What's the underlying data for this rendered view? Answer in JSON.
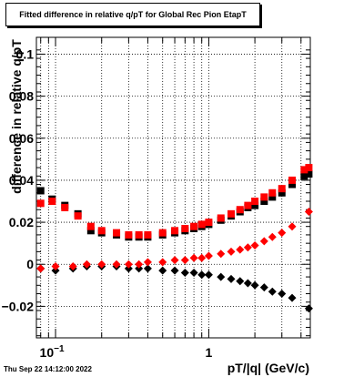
{
  "title": "Fitted difference in relative q/pT for Global Rec Pion EtapT",
  "footer": "Thu Sep 22 14:12:00 2022",
  "chart_data": {
    "type": "scatter",
    "title": "Fitted difference in relative q/pT for Global Rec Pion EtapT",
    "xlabel": "pT/|q| (GeV/c)",
    "ylabel": "difference in relative q/pT",
    "xscale": "log",
    "xlim": [
      0.075,
      4.6
    ],
    "ylim": [
      -0.035,
      0.108
    ],
    "grid": true,
    "x_ticks": [
      {
        "value": 0.1,
        "label": "10^-1"
      },
      {
        "value": 1,
        "label": "1"
      }
    ],
    "y_ticks": [
      {
        "value": -0.02,
        "label": "−0.02"
      },
      {
        "value": 0,
        "label": "0"
      },
      {
        "value": 0.02,
        "label": "0.02"
      },
      {
        "value": 0.04,
        "label": "0.04"
      },
      {
        "value": 0.06,
        "label": "0.06"
      },
      {
        "value": 0.08,
        "label": "0.08"
      },
      {
        "value": 0.1,
        "label": "0.1"
      }
    ],
    "series": [
      {
        "marker": "square",
        "color": "#000000",
        "x": [
          0.08,
          0.095,
          0.115,
          0.14,
          0.17,
          0.2,
          0.25,
          0.3,
          0.35,
          0.4,
          0.5,
          0.6,
          0.7,
          0.8,
          0.9,
          1.0,
          1.2,
          1.4,
          1.6,
          1.8,
          2.0,
          2.3,
          2.6,
          3.0,
          3.5,
          4.2,
          4.5
        ],
        "y": [
          0.035,
          0.031,
          0.028,
          0.024,
          0.016,
          0.015,
          0.014,
          0.013,
          0.013,
          0.013,
          0.014,
          0.015,
          0.016,
          0.017,
          0.018,
          0.019,
          0.021,
          0.023,
          0.025,
          0.027,
          0.028,
          0.03,
          0.032,
          0.034,
          0.038,
          0.042,
          0.043
        ]
      },
      {
        "marker": "square",
        "color": "#ff0000",
        "x": [
          0.08,
          0.095,
          0.115,
          0.14,
          0.17,
          0.2,
          0.25,
          0.3,
          0.35,
          0.4,
          0.5,
          0.6,
          0.7,
          0.8,
          0.9,
          1.0,
          1.2,
          1.4,
          1.6,
          1.8,
          2.0,
          2.3,
          2.6,
          3.0,
          3.5,
          4.2,
          4.5
        ],
        "y": [
          0.029,
          0.03,
          0.027,
          0.023,
          0.018,
          0.016,
          0.015,
          0.014,
          0.014,
          0.014,
          0.015,
          0.016,
          0.017,
          0.018,
          0.019,
          0.02,
          0.022,
          0.024,
          0.026,
          0.028,
          0.03,
          0.032,
          0.034,
          0.036,
          0.04,
          0.045,
          0.046
        ]
      },
      {
        "marker": "diamond",
        "color": "#000000",
        "x": [
          0.08,
          0.1,
          0.13,
          0.16,
          0.2,
          0.25,
          0.3,
          0.35,
          0.4,
          0.5,
          0.6,
          0.7,
          0.8,
          0.9,
          1.0,
          1.2,
          1.4,
          1.6,
          1.8,
          2.0,
          2.3,
          2.6,
          3.0,
          3.5,
          4.5
        ],
        "y": [
          -0.002,
          -0.003,
          -0.002,
          -0.001,
          -0.001,
          -0.001,
          -0.002,
          -0.002,
          -0.002,
          -0.003,
          -0.003,
          -0.004,
          -0.004,
          -0.005,
          -0.005,
          -0.006,
          -0.007,
          -0.008,
          -0.009,
          -0.01,
          -0.011,
          -0.013,
          -0.014,
          -0.016,
          -0.021
        ]
      },
      {
        "marker": "diamond",
        "color": "#ff0000",
        "x": [
          0.08,
          0.1,
          0.13,
          0.16,
          0.2,
          0.25,
          0.3,
          0.35,
          0.4,
          0.5,
          0.6,
          0.7,
          0.8,
          0.9,
          1.0,
          1.2,
          1.4,
          1.6,
          1.8,
          2.0,
          2.3,
          2.6,
          3.0,
          3.5,
          4.5
        ],
        "y": [
          -0.002,
          -0.001,
          -0.001,
          0.0,
          0.0,
          0.0,
          0.0,
          0.0,
          0.001,
          0.001,
          0.002,
          0.002,
          0.003,
          0.003,
          0.004,
          0.005,
          0.006,
          0.007,
          0.008,
          0.009,
          0.011,
          0.013,
          0.015,
          0.018,
          0.025
        ]
      }
    ]
  }
}
